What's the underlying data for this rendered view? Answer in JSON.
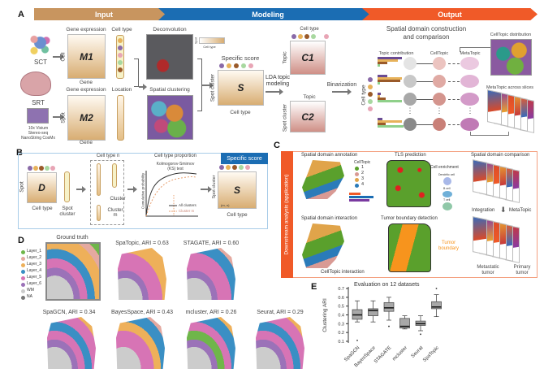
{
  "colors": {
    "input": "#c8955f",
    "modeling": "#1b6db3",
    "output": "#f05a28",
    "downstream": "#f05a28"
  },
  "header": {
    "input": "Input",
    "modeling": "Modeling",
    "output": "Output"
  },
  "panel_labels": {
    "a": "A",
    "b": "B",
    "c": "C",
    "d": "D",
    "e": "E"
  },
  "panelA": {
    "sct": "SCT",
    "srt": "SRT",
    "platforms": [
      "10x Visium",
      "Stereo-seq",
      "NanoString CosMx"
    ],
    "m1": {
      "title": "Gene expression",
      "matrix": "M1",
      "row": "Cell",
      "col": "Gene"
    },
    "celltype": "Cell type",
    "m2": {
      "title": "Gene expression",
      "matrix": "M2",
      "row": "Spot",
      "col": "Gene"
    },
    "location": "Location",
    "deconvolution": "Deconvolution",
    "inset_row": "Spot",
    "inset_col": "Cell type",
    "spatial_clustering": "Spatial clustering",
    "s": {
      "title": "Specific score",
      "matrix": "S",
      "row": "Spot cluster",
      "col": "Cell type"
    },
    "lda": "LDA topic modeling",
    "c1": {
      "top": "Cell type",
      "matrix": "C1",
      "row": "Topic"
    },
    "c2": {
      "top": "Topic",
      "matrix": "C2",
      "row": "Spot cluster"
    },
    "binarization": "Binarization",
    "celltype_axis": "Cell type",
    "output_title": [
      "Spatial domain construction",
      "and comparison"
    ],
    "topic_contribution": "Topic contribution",
    "celltopic": "CellTopic",
    "metatopic": "MetaTopic",
    "celltopic_distribution": "CellTopic distribution",
    "metatopic_slices": "MetaTopic across slices",
    "ellipsis": "⋮"
  },
  "panelB": {
    "d": {
      "matrix": "D",
      "row": "Spot",
      "col": "Cell type"
    },
    "spot_cluster": "Spot cluster",
    "celltype_n": "Cell type n",
    "cluster": "Cluster",
    "cluster_m": "Cluster m",
    "proportion": "Cell type proportion",
    "ks": [
      "Kolmogorov-Smirnov",
      "(KS) test"
    ],
    "ylabel": "Cumulative probability",
    "legend": [
      "All clusters",
      "Cluster m"
    ],
    "tab": "Specific score",
    "s": {
      "matrix": "S",
      "row": "Spot cluster",
      "col": "Cell type",
      "cell": "(m, n)"
    }
  },
  "panelC": {
    "side": "Downstream analysis (application)",
    "annotation": "Spatial domain annotation",
    "legend_title": "CellTopic",
    "legend": [
      "1",
      "2",
      "3",
      "4"
    ],
    "legend_colors": [
      "#5aa02c",
      "#d99a94",
      "#e0a44a",
      "#2b7bb9"
    ],
    "tls": "TLS prediction",
    "enrichment": "Cell enrichment",
    "cells": [
      "Dendritic cell",
      "B cell",
      "T cell"
    ],
    "comparison": "Spatial domain comparison",
    "integration": "Integration",
    "metatopic": "MetaTopic",
    "metastatic": [
      "Metastatic",
      "tumor"
    ],
    "primary": [
      "Primary",
      "tumor"
    ],
    "interaction": "Spatial domain interaction",
    "celltopic_interaction": "CellTopic interaction",
    "boundary": "Tumor boundary detection",
    "tumor_boundary": [
      "Tumor",
      "boundary"
    ]
  },
  "panelD": {
    "legend": [
      {
        "label": "Layer_1",
        "color": "#6fb64a"
      },
      {
        "label": "Layer_2",
        "color": "#e4a9a0"
      },
      {
        "label": "Layer_3",
        "color": "#eeb05a"
      },
      {
        "label": "Layer_4",
        "color": "#3a8fc4"
      },
      {
        "label": "Layer_5",
        "color": "#d774b5"
      },
      {
        "label": "Layer_6",
        "color": "#9b72b8"
      },
      {
        "label": "WM",
        "color": "#cccccc"
      },
      {
        "label": "NA",
        "color": "#777777"
      }
    ],
    "titles": [
      "Ground truth",
      "SpaTopic, ARI = 0.63",
      "STAGATE, ARI = 0.60",
      "SpaGCN, ARI = 0.34",
      "BayesSpace, ARI = 0.43",
      "mcluster, ARI = 0.26",
      "Seurat, ARI = 0.29"
    ]
  },
  "chart_data": {
    "type": "box",
    "title": "Evaluation on 12 datasets",
    "ylabel": "Clustering ARI",
    "xlabel": "",
    "ylim": [
      0.1,
      0.7
    ],
    "yticks": [
      "0.1",
      "0.2",
      "0.3",
      "0.4",
      "0.5",
      "0.6",
      "0.7"
    ],
    "categories": [
      "SpaGCN",
      "BayesSpace",
      "STAGATE",
      "mcluster",
      "Seurat",
      "SpaTopic"
    ],
    "boxes": [
      {
        "min": 0.32,
        "q1": 0.35,
        "median": 0.4,
        "q3": 0.46,
        "max": 0.56,
        "outliers": [
          0.11
        ]
      },
      {
        "min": 0.32,
        "q1": 0.39,
        "median": 0.45,
        "q3": 0.47,
        "max": 0.56,
        "outliers": []
      },
      {
        "min": 0.34,
        "q1": 0.44,
        "median": 0.48,
        "q3": 0.54,
        "max": 0.6,
        "outliers": [
          0.27
        ]
      },
      {
        "min": 0.24,
        "q1": 0.25,
        "median": 0.27,
        "q3": 0.36,
        "max": 0.39,
        "outliers": []
      },
      {
        "min": 0.22,
        "q1": 0.28,
        "median": 0.3,
        "q3": 0.33,
        "max": 0.39,
        "outliers": [
          0.18
        ]
      },
      {
        "min": 0.38,
        "q1": 0.47,
        "median": 0.49,
        "q3": 0.55,
        "max": 0.63,
        "outliers": [
          0.7
        ]
      }
    ]
  }
}
